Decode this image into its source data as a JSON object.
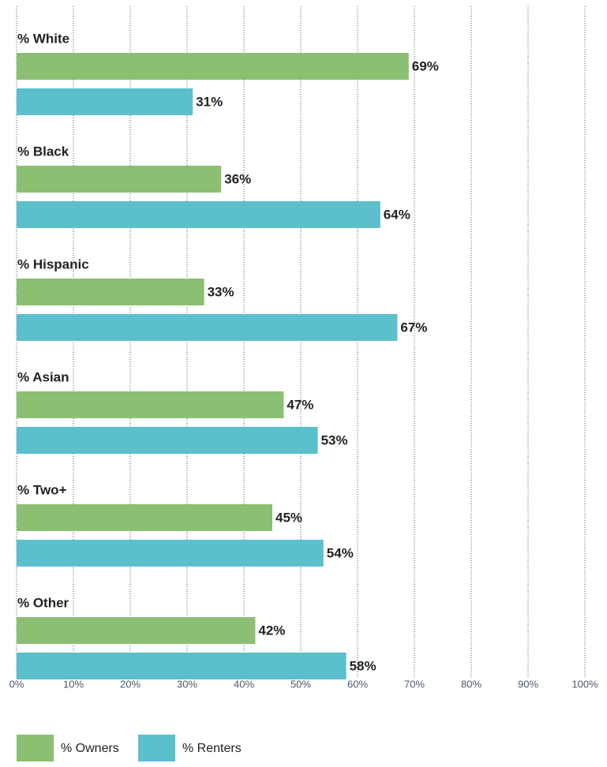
{
  "chart_data": {
    "type": "bar",
    "orientation": "horizontal",
    "categories": [
      "% White",
      "% Black",
      "% Hispanic",
      "% Asian",
      "% Two+",
      "% Other"
    ],
    "series": [
      {
        "name": "% Owners",
        "color": "#8bbf73",
        "values": [
          69,
          36,
          33,
          47,
          45,
          42
        ],
        "value_labels": [
          "69%",
          "36%",
          "33%",
          "47%",
          "45%",
          "42%"
        ]
      },
      {
        "name": "% Renters",
        "color": "#5bbfcc",
        "values": [
          31,
          64,
          67,
          53,
          54,
          58
        ],
        "value_labels": [
          "31%",
          "64%",
          "67%",
          "53%",
          "54%",
          "58%"
        ]
      }
    ],
    "xlim": [
      0,
      100
    ],
    "xticks": [
      {
        "value": 0,
        "label": "0%"
      },
      {
        "value": 10,
        "label": "10%"
      },
      {
        "value": 20,
        "label": "20%"
      },
      {
        "value": 30,
        "label": "30%"
      },
      {
        "value": 40,
        "label": "40%"
      },
      {
        "value": 50,
        "label": "50%"
      },
      {
        "value": 60,
        "label": "60%"
      },
      {
        "value": 70,
        "label": "70%"
      },
      {
        "value": 80,
        "label": "80%"
      },
      {
        "value": 90,
        "label": "90%"
      },
      {
        "value": 100,
        "label": "100%"
      }
    ],
    "grid": true,
    "legend": "bottom-left"
  }
}
